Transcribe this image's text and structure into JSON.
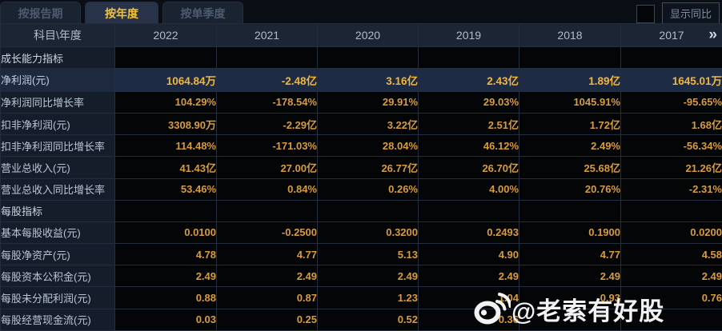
{
  "tabs": [
    {
      "label": "按报告期",
      "active": false
    },
    {
      "label": "按年度",
      "active": true
    },
    {
      "label": "按单季度",
      "active": false
    }
  ],
  "controls": {
    "show_yoy_checkbox_checked": false,
    "show_yoy_label": "显示同比"
  },
  "table": {
    "corner_label": "科目\\年度",
    "years": [
      "2022",
      "2021",
      "2020",
      "2019",
      "2018",
      "2017"
    ],
    "more_icon": "»",
    "rows": [
      {
        "label": "成长能力指标",
        "type": "section",
        "values": [
          "",
          "",
          "",
          "",
          "",
          ""
        ]
      },
      {
        "label": "净利润(元)",
        "type": "highlight",
        "values": [
          "1064.84万",
          "-2.48亿",
          "3.16亿",
          "2.43亿",
          "1.89亿",
          "1645.01万"
        ]
      },
      {
        "label": "净利润同比增长率",
        "type": "data",
        "values": [
          "104.29%",
          "-178.54%",
          "29.91%",
          "29.03%",
          "1045.91%",
          "-95.65%"
        ]
      },
      {
        "label": "扣非净利润(元)",
        "type": "data",
        "values": [
          "3308.90万",
          "-2.29亿",
          "3.22亿",
          "2.51亿",
          "1.72亿",
          "1.68亿"
        ]
      },
      {
        "label": "扣非净利润同比增长率",
        "type": "data",
        "values": [
          "114.48%",
          "-171.03%",
          "28.04%",
          "46.12%",
          "2.49%",
          "-56.34%"
        ]
      },
      {
        "label": "营业总收入(元)",
        "type": "data",
        "values": [
          "41.43亿",
          "27.00亿",
          "26.77亿",
          "26.70亿",
          "25.68亿",
          "21.26亿"
        ]
      },
      {
        "label": "营业总收入同比增长率",
        "type": "data",
        "values": [
          "53.46%",
          "0.84%",
          "0.26%",
          "4.00%",
          "20.76%",
          "-2.31%"
        ]
      },
      {
        "label": "每股指标",
        "type": "section",
        "values": [
          "",
          "",
          "",
          "",
          "",
          ""
        ]
      },
      {
        "label": "基本每股收益(元)",
        "type": "data",
        "values": [
          "0.0100",
          "-0.2500",
          "0.3200",
          "0.2493",
          "0.1900",
          "0.0200"
        ]
      },
      {
        "label": "每股净资产(元)",
        "type": "data",
        "values": [
          "4.78",
          "4.77",
          "5.13",
          "4.90",
          "4.77",
          "4.58"
        ]
      },
      {
        "label": "每股资本公积金(元)",
        "type": "data",
        "values": [
          "2.49",
          "2.49",
          "2.49",
          "2.49",
          "2.49",
          "2.49"
        ]
      },
      {
        "label": "每股未分配利润(元)",
        "type": "data",
        "values": [
          "0.88",
          "0.87",
          "1.23",
          "1.04",
          "0.93",
          "0.76"
        ]
      },
      {
        "label": "每股经营现金流(元)",
        "type": "data",
        "values": [
          "0.03",
          "0.25",
          "0.52",
          "0.36",
          "",
          ""
        ]
      }
    ]
  },
  "watermark": {
    "text": "@老索有好股",
    "icon": "weibo-icon"
  },
  "colors": {
    "accent_value": "#d89b3d",
    "highlight_value": "#f2b63e",
    "active_tab_text": "#f2c23c",
    "header_bg": "#1b2533",
    "label_bg": "#151d2a",
    "highlight_bg": "#1e2b44",
    "data_bg": "#040507"
  }
}
